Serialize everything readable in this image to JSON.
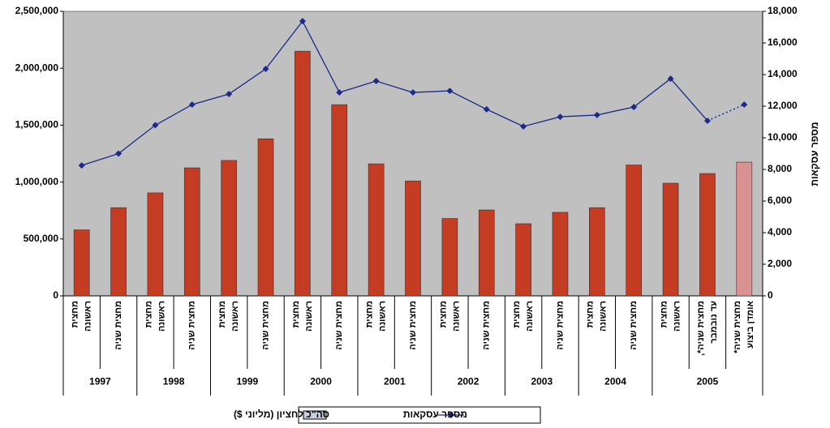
{
  "chart_data": {
    "type": "bar-line",
    "categories": [
      [
        "מחצית",
        "ראשונה"
      ],
      [
        "מחצית שניה"
      ],
      [
        "מחצית",
        "ראשונה"
      ],
      [
        "מחצית שניה"
      ],
      [
        "מחצית",
        "ראשונה"
      ],
      [
        "מחצית שניה"
      ],
      [
        "מחצית",
        "ראשונה"
      ],
      [
        "מחצית שניה"
      ],
      [
        "מחצית",
        "ראשונה"
      ],
      [
        "מחצית שניה"
      ],
      [
        "מחצית",
        "ראשונה"
      ],
      [
        "מחצית שניה"
      ],
      [
        "מחצית",
        "ראשונה"
      ],
      [
        "מחצית שניה"
      ],
      [
        "מחצית",
        "ראשונה"
      ],
      [
        "מחצית שניה"
      ],
      [
        "מחצית",
        "ראשונה"
      ],
      [
        "מחצית שניה*,",
        "עד נובמבר"
      ],
      [
        "מחצית שניה*",
        "אומדן ביצוע"
      ]
    ],
    "years": [
      "1997",
      null,
      "1998",
      null,
      "1999",
      null,
      "2000",
      null,
      "2001",
      null,
      "2002",
      null,
      "2003",
      null,
      "2004",
      null,
      "2005",
      null,
      null
    ],
    "series": [
      {
        "name": "סה\"כ לחציון (מליוני $)",
        "type": "bar",
        "color": "#c43c22",
        "legend_color": "#c9cfe0",
        "colors": [
          "#c43c22",
          "#c43c22",
          "#c43c22",
          "#c43c22",
          "#c43c22",
          "#c43c22",
          "#c43c22",
          "#c43c22",
          "#c43c22",
          "#c43c22",
          "#c43c22",
          "#c43c22",
          "#c43c22",
          "#c43c22",
          "#c43c22",
          "#c43c22",
          "#c43c22",
          "#c43c22",
          "#d99191"
        ],
        "values": [
          580000,
          775000,
          905000,
          1125000,
          1190000,
          1380000,
          2150000,
          1680000,
          1160000,
          1010000,
          680000,
          755000,
          634000,
          734000,
          775000,
          1150000,
          990000,
          1075000,
          1175000
        ]
      },
      {
        "name": "מספר עסקאות",
        "type": "line",
        "axis": "y2",
        "color": "#1c2a8c",
        "dashed_last_segment": true,
        "values": [
          8250,
          9000,
          10800,
          12100,
          12770,
          14360,
          17380,
          12870,
          13590,
          12870,
          12970,
          11800,
          10720,
          11330,
          11440,
          11950,
          13740,
          11080,
          12100
        ]
      }
    ],
    "ylim": [
      0,
      2500000
    ],
    "yticks": [
      0,
      {
        "value": 500000,
        "label": "500,000"
      },
      {
        "value": 1000000,
        "label": "1,000,000"
      },
      {
        "value": 1500000,
        "label": "1,500,000"
      },
      {
        "value": 2000000,
        "label": "2,000,000"
      },
      {
        "value": 2500000,
        "label": "2,500,000"
      }
    ],
    "y2lim": [
      0,
      18000
    ],
    "y2ticks": [
      0,
      {
        "value": 2000,
        "label": "2,000"
      },
      {
        "value": 4000,
        "label": "4,000"
      },
      {
        "value": 6000,
        "label": "6,000"
      },
      {
        "value": 8000,
        "label": "8,000"
      },
      {
        "value": 10000,
        "label": "10,000"
      },
      {
        "value": 12000,
        "label": "12,000"
      },
      {
        "value": 14000,
        "label": "14,000"
      },
      {
        "value": 16000,
        "label": "16,000"
      },
      {
        "value": 18000,
        "label": "18,000"
      }
    ],
    "y2label": "מספר עסקאות",
    "plot_background": "#c0c0c0"
  }
}
